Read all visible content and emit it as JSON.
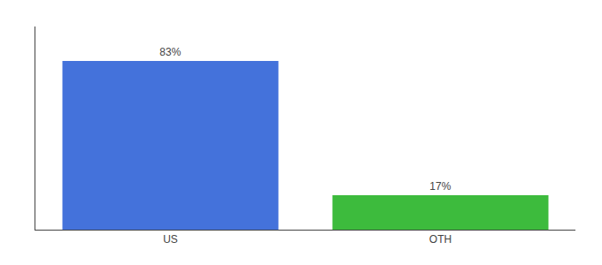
{
  "chart_data": {
    "type": "bar",
    "categories": [
      "US",
      "OTH"
    ],
    "values": [
      83,
      17
    ],
    "value_labels": [
      "83%",
      "17%"
    ],
    "data_labels": true,
    "colors": [
      "#4472db",
      "#3dbb3d"
    ],
    "ylim": [
      0,
      100
    ],
    "yticks": [],
    "tick_labels": "x",
    "grid": false
  }
}
